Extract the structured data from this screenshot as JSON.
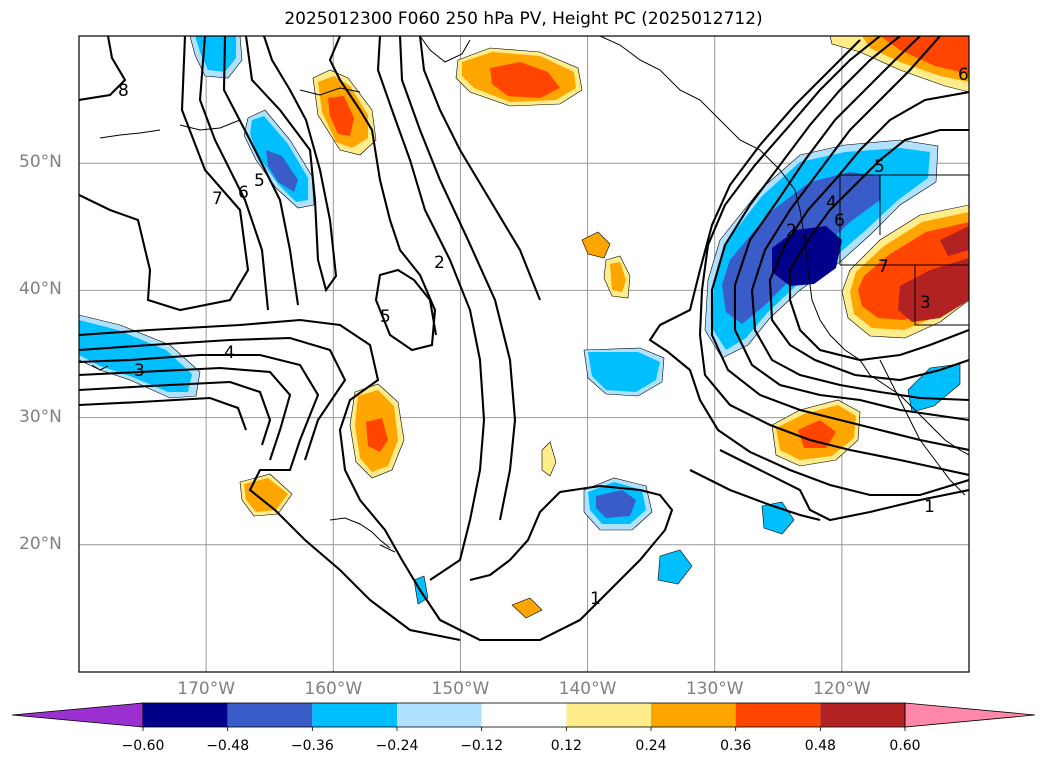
{
  "title": "2025012300 F060 250 hPa PV, Height PC (2025012712)",
  "map": {
    "projection": "PlateCarree",
    "lon_range": [
      -180,
      -110
    ],
    "lat_range": [
      10,
      60
    ],
    "gridlines": true,
    "lat_ticks": [
      {
        "value": 50,
        "label": "50°N"
      },
      {
        "value": 40,
        "label": "40°N"
      },
      {
        "value": 30,
        "label": "30°N"
      },
      {
        "value": 20,
        "label": "20°N"
      }
    ],
    "lon_ticks": [
      {
        "value": -170,
        "label": "170°W"
      },
      {
        "value": -160,
        "label": "160°W"
      },
      {
        "value": -150,
        "label": "150°W"
      },
      {
        "value": -140,
        "label": "140°W"
      },
      {
        "value": -130,
        "label": "130°W"
      },
      {
        "value": -120,
        "label": "120°W"
      }
    ]
  },
  "colorbar": {
    "extend": "both",
    "levels": [
      -0.6,
      -0.48,
      -0.36,
      -0.24,
      -0.12,
      0.12,
      0.24,
      0.36,
      0.48,
      0.6
    ],
    "labels": [
      "−0.60",
      "−0.48",
      "−0.36",
      "−0.24",
      "−0.12",
      "0.12",
      "0.24",
      "0.36",
      "0.48",
      "0.60"
    ],
    "colors": [
      "#9b30d0",
      "#00008b",
      "#3a5cc8",
      "#00bfff",
      "#b0e2ff",
      "#ffffff",
      "#ffec8b",
      "#ffa500",
      "#ff4500",
      "#b22222",
      "#ff88aa"
    ]
  },
  "contour_labels": [
    "8",
    "7",
    "6",
    "5",
    "5",
    "2",
    "4",
    "3",
    "1",
    "1",
    "5",
    "4",
    "6",
    "2",
    "7",
    "3",
    "6"
  ]
}
